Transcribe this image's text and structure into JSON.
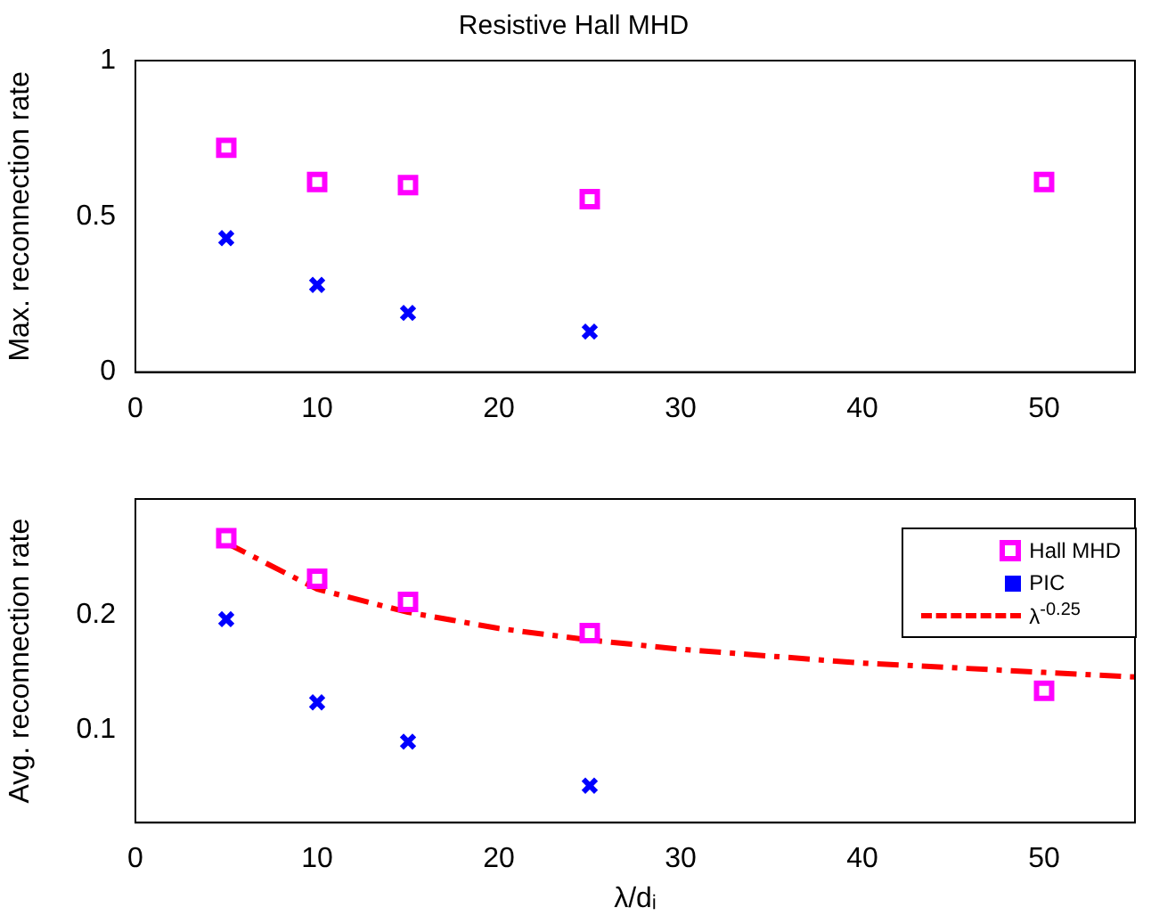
{
  "chart_data": [
    {
      "type": "scatter",
      "title": "Resistive Hall MHD",
      "ylabel": "Max. reconnection rate",
      "xlim": [
        0,
        55
      ],
      "xticks": [
        0,
        10,
        20,
        30,
        40,
        50
      ],
      "ylim": [
        0,
        1
      ],
      "yticks": [
        0,
        0.5,
        1
      ],
      "grid": false,
      "legend": false,
      "series": [
        {
          "color": "#ff00ff",
          "marker": "square",
          "x": [
            5,
            10,
            15,
            25,
            50
          ],
          "values": [
            0.72,
            0.61,
            0.6,
            0.555,
            0.61
          ]
        },
        {
          "color": "#0000ff",
          "marker": "cross",
          "x": [
            5,
            10,
            15,
            25
          ],
          "values": [
            0.43,
            0.28,
            0.19,
            0.13
          ]
        }
      ]
    },
    {
      "type": "scatter",
      "xlabel": "λ/dᵢ",
      "ylabel": "Avg. reconnection rate",
      "xlim": [
        0,
        55
      ],
      "xticks": [
        0,
        10,
        20,
        30,
        40,
        50
      ],
      "ylim": [
        0.02,
        0.3
      ],
      "yticks": [
        0.1,
        0.2
      ],
      "grid": false,
      "legend": "top right",
      "series": [
        {
          "name": "Hall MHD",
          "color": "#ff00ff",
          "marker": "square",
          "x": [
            5,
            10,
            15,
            25,
            50
          ],
          "values": [
            0.266,
            0.231,
            0.211,
            0.184,
            0.134
          ]
        },
        {
          "name": "PIC",
          "color": "#0000ff",
          "marker": "cross",
          "x": [
            5,
            10,
            15,
            25
          ],
          "values": [
            0.196,
            0.124,
            0.09,
            0.052
          ]
        },
        {
          "name": "λ$^{-0.25}$",
          "type": "line",
          "color": "#ff0000",
          "marker": "none",
          "line_style": "dashed",
          "x": [
            5,
            10,
            15,
            20,
            25,
            30,
            40,
            50,
            55
          ],
          "values": [
            0.262,
            0.222,
            0.202,
            0.188,
            0.178,
            0.17,
            0.158,
            0.15,
            0.146
          ]
        }
      ]
    }
  ]
}
